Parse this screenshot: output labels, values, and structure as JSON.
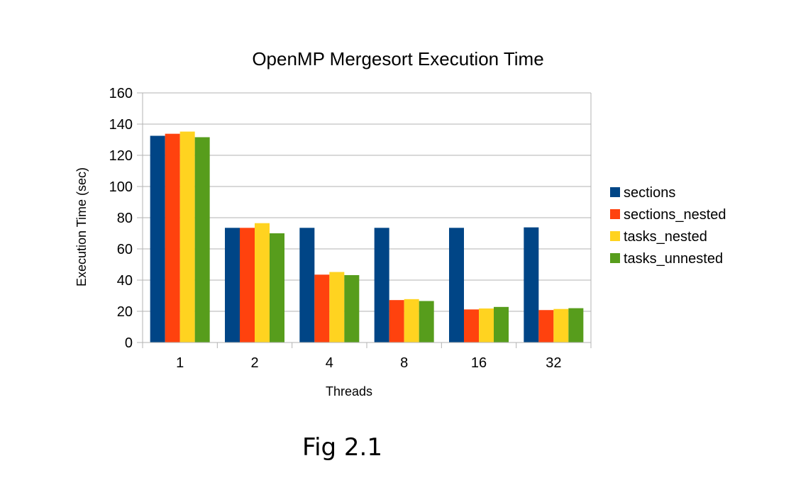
{
  "caption": "Fig 2.1",
  "chart_data": {
    "type": "bar",
    "title": "OpenMP Mergesort Execution Time",
    "xlabel": "Threads",
    "ylabel": "Execution Time (sec)",
    "categories": [
      "1",
      "2",
      "4",
      "8",
      "16",
      "32"
    ],
    "ylim": [
      0,
      160
    ],
    "yticks": [
      0,
      20,
      40,
      60,
      80,
      100,
      120,
      140,
      160
    ],
    "grid": true,
    "legend_position": "right",
    "series": [
      {
        "name": "sections",
        "color": "#004586",
        "values": [
          132.5,
          73.5,
          73.5,
          73.5,
          73.5,
          73.8
        ]
      },
      {
        "name": "sections_nested",
        "color": "#ff420e",
        "values": [
          133.8,
          73.5,
          43.5,
          27.2,
          21.2,
          20.8
        ]
      },
      {
        "name": "tasks_nested",
        "color": "#ffd320",
        "values": [
          135.2,
          76.5,
          45.2,
          27.8,
          21.8,
          21.5
        ]
      },
      {
        "name": "tasks_unnested",
        "color": "#579d1c",
        "values": [
          131.6,
          70.0,
          43.2,
          26.6,
          22.8,
          22.0
        ]
      }
    ]
  }
}
